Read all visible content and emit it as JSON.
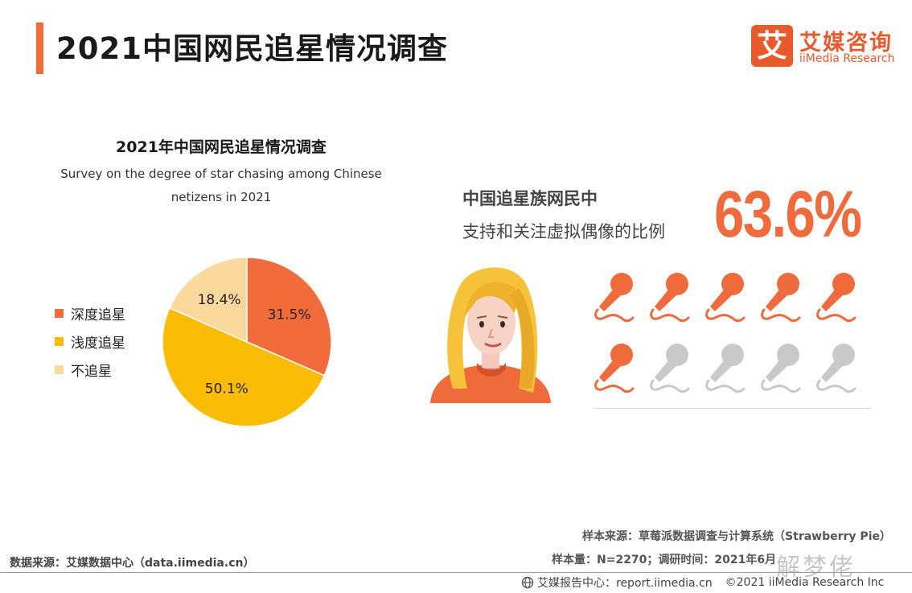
{
  "header": {
    "title": "2021中国网民追星情况调查",
    "logo": {
      "mark": "艾",
      "name_cn": "艾媒咨询",
      "name_en": "iiMedia Research"
    }
  },
  "chart_data": {
    "type": "pie",
    "title": "2021年中国网民追星情况调查",
    "subtitle_lines": [
      "Survey on the degree of star chasing among Chinese",
      "netizens in 2021"
    ],
    "categories": [
      "深度追星",
      "浅度追星",
      "不追星"
    ],
    "values": [
      31.5,
      50.1,
      18.4
    ],
    "value_labels": [
      "31.5%",
      "50.1%",
      "18.4%"
    ],
    "colors": [
      "#f26b3a",
      "#fbbc05",
      "#fbd99c"
    ],
    "legend_position": "left"
  },
  "stat": {
    "line1": "中国追星族网民中",
    "line2": "支持和关注虚拟偶像的比例",
    "value": "63.6%",
    "icons_total": 10,
    "icons_highlighted": 6,
    "icon_name": "microphone-icon",
    "highlight_color": "#ef6b3c",
    "muted_color": "#c9c9c9"
  },
  "sources": {
    "data_source": "数据来源：艾媒数据中心（data.iimedia.cn）",
    "sample_source": "样本来源：草莓派数据调查与计算系统（Strawberry Pie）",
    "sample_size": "样本量：N=2270；调研时间：2021年6月"
  },
  "footer": {
    "report_center": "艾媒报告中心：report.iimedia.cn",
    "copyright": "©2021  iiMedia Research Inc"
  },
  "watermark": "解梦佬"
}
